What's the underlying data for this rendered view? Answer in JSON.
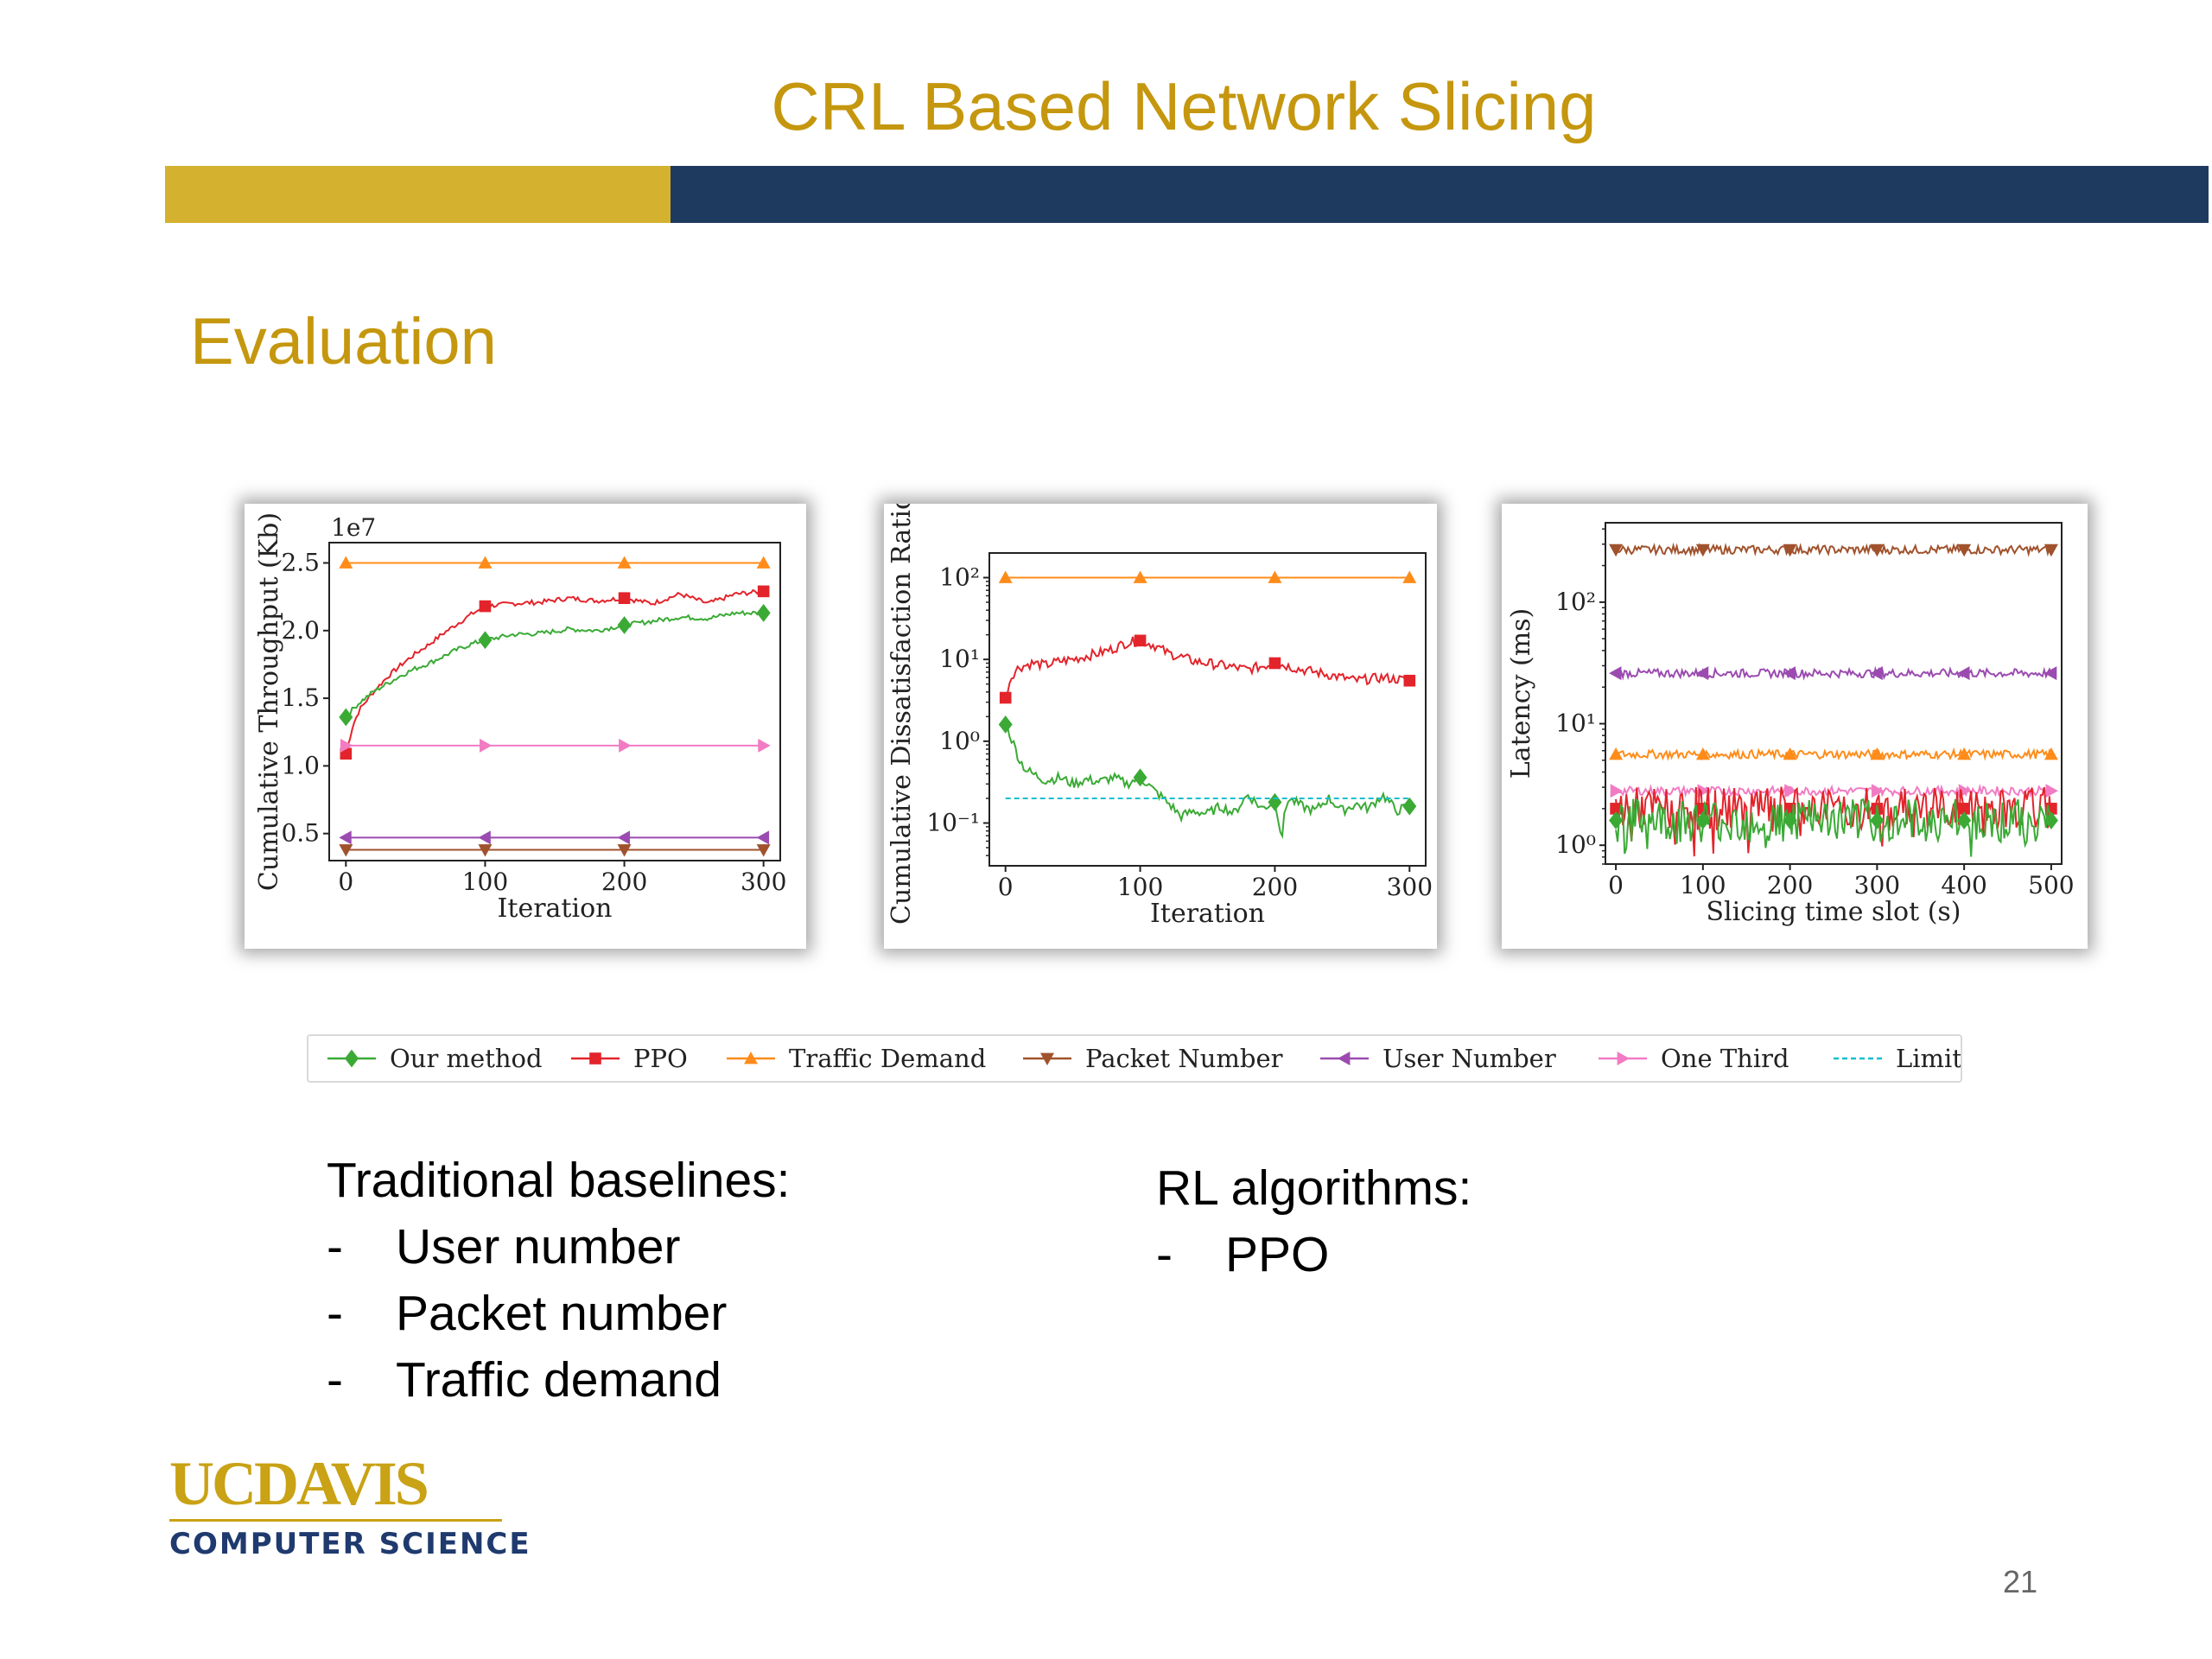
{
  "slide": {
    "title": "CRL Based Network Slicing",
    "section": "Evaluation",
    "page_number": "21"
  },
  "colors": {
    "gold": "#d4b12f",
    "navy": "#1f3a5f",
    "title": "#c5970e",
    "logo_navy": "#1f3a6e",
    "logo_gold": "#c9a215"
  },
  "series_styles": {
    "Our method": {
      "color": "#3aaa35",
      "marker": "diamond"
    },
    "PPO": {
      "color": "#e3242b",
      "marker": "square"
    },
    "Traffic Demand": {
      "color": "#ff8c1a",
      "marker": "triangle-up"
    },
    "Packet Number": {
      "color": "#a0522d",
      "marker": "triangle-down"
    },
    "User Number": {
      "color": "#9b4bb0",
      "marker": "triangle-left"
    },
    "One Third": {
      "color": "#f17cc3",
      "marker": "triangle-right"
    },
    "Limit": {
      "color": "#17becf",
      "marker": "dashed"
    }
  },
  "chart_data": [
    {
      "type": "line",
      "ylabel": "Cumulative Throughput (Kb)",
      "xlabel": "Iteration",
      "y_multiplier": "1e7",
      "xlim": [
        -12,
        312
      ],
      "ylim": [
        0.3,
        2.65
      ],
      "xticks": [
        0,
        100,
        200,
        300
      ],
      "xtick_labels": [
        "0",
        "100",
        "200",
        "300"
      ],
      "yticks": [
        0.5,
        1.0,
        1.5,
        2.0,
        2.5
      ],
      "ytick_labels": [
        "0.5",
        "1.0",
        "1.5",
        "2.0",
        "2.5"
      ],
      "series": [
        {
          "name": "Traffic Demand",
          "x": [
            0,
            300
          ],
          "y": [
            2.5,
            2.5
          ],
          "markers_x": [
            0,
            100,
            200,
            300
          ]
        },
        {
          "name": "PPO",
          "x": [
            0,
            5,
            10,
            20,
            30,
            40,
            50,
            60,
            70,
            80,
            90,
            100,
            120,
            140,
            160,
            180,
            200,
            220,
            240,
            260,
            280,
            300
          ],
          "y": [
            1.09,
            1.3,
            1.42,
            1.55,
            1.66,
            1.75,
            1.83,
            1.9,
            1.98,
            2.05,
            2.12,
            2.18,
            2.2,
            2.21,
            2.24,
            2.22,
            2.24,
            2.2,
            2.27,
            2.2,
            2.27,
            2.29
          ],
          "markers_x": [
            0,
            100,
            200,
            300
          ]
        },
        {
          "name": "Our method",
          "x": [
            0,
            5,
            10,
            20,
            30,
            40,
            50,
            60,
            70,
            80,
            90,
            100,
            120,
            140,
            160,
            180,
            200,
            220,
            240,
            260,
            280,
            300
          ],
          "y": [
            1.36,
            1.42,
            1.47,
            1.55,
            1.61,
            1.67,
            1.72,
            1.76,
            1.81,
            1.86,
            1.9,
            1.93,
            1.97,
            1.98,
            2.01,
            2.0,
            2.04,
            2.07,
            2.1,
            2.09,
            2.13,
            2.13
          ],
          "markers_x": [
            0,
            100,
            200,
            300
          ]
        },
        {
          "name": "One Third",
          "x": [
            0,
            300
          ],
          "y": [
            1.15,
            1.15
          ],
          "markers_x": [
            0,
            100,
            200,
            300
          ]
        },
        {
          "name": "User Number",
          "x": [
            0,
            300
          ],
          "y": [
            0.47,
            0.47
          ],
          "markers_x": [
            0,
            100,
            200,
            300
          ]
        },
        {
          "name": "Packet Number",
          "x": [
            0,
            300
          ],
          "y": [
            0.38,
            0.38
          ],
          "markers_x": [
            0,
            100,
            200,
            300
          ]
        }
      ]
    },
    {
      "type": "line",
      "scale": "log",
      "ylabel": "Cumulative Dissatisfaction Ratio",
      "xlabel": "Iteration",
      "xlim": [
        -12,
        312
      ],
      "ylim": [
        0.03,
        200
      ],
      "xticks": [
        0,
        100,
        200,
        300
      ],
      "xtick_labels": [
        "0",
        "100",
        "200",
        "300"
      ],
      "yticks": [
        0.1,
        1,
        10,
        100
      ],
      "ytick_labels": [
        "10⁻¹",
        "10⁰",
        "10¹",
        "10²"
      ],
      "series": [
        {
          "name": "Traffic Demand",
          "x": [
            0,
            300
          ],
          "y": [
            100,
            100
          ],
          "markers_x": [
            0,
            100,
            200,
            300
          ]
        },
        {
          "name": "PPO",
          "x": [
            0,
            5,
            10,
            20,
            30,
            40,
            50,
            60,
            70,
            80,
            90,
            100,
            110,
            120,
            140,
            160,
            180,
            200,
            220,
            240,
            260,
            280,
            300
          ],
          "y": [
            3.4,
            6.5,
            8.0,
            9.0,
            8.5,
            9.5,
            10.0,
            11.0,
            12.0,
            13.5,
            16.0,
            17.0,
            15.0,
            12.0,
            9.5,
            8.5,
            7.5,
            9.0,
            7.5,
            6.5,
            5.5,
            6.0,
            5.5
          ],
          "markers_x": [
            0,
            100,
            200,
            300
          ]
        },
        {
          "name": "Our method",
          "x": [
            0,
            5,
            10,
            15,
            20,
            30,
            40,
            50,
            60,
            70,
            80,
            90,
            100,
            110,
            120,
            130,
            140,
            150,
            160,
            170,
            180,
            190,
            200,
            205,
            210,
            220,
            230,
            240,
            250,
            260,
            270,
            280,
            290,
            300
          ],
          "y": [
            1.6,
            1.0,
            0.6,
            0.45,
            0.4,
            0.33,
            0.36,
            0.3,
            0.34,
            0.32,
            0.36,
            0.3,
            0.36,
            0.25,
            0.18,
            0.12,
            0.14,
            0.13,
            0.16,
            0.13,
            0.22,
            0.15,
            0.18,
            0.06,
            0.2,
            0.16,
            0.14,
            0.2,
            0.14,
            0.17,
            0.15,
            0.22,
            0.14,
            0.16
          ],
          "markers_x": [
            0,
            100,
            200,
            300
          ]
        },
        {
          "name": "Limit",
          "x": [
            0,
            300
          ],
          "y": [
            0.2,
            0.2
          ]
        }
      ]
    },
    {
      "type": "line",
      "scale": "log",
      "ylabel": "Latency (ms)",
      "xlabel": "Slicing time slot (s)",
      "xlim": [
        -12,
        512
      ],
      "ylim": [
        0.7,
        450
      ],
      "xticks": [
        0,
        100,
        200,
        300,
        400,
        500
      ],
      "xtick_labels": [
        "0",
        "100",
        "200",
        "300",
        "400",
        "500"
      ],
      "yticks": [
        1,
        10,
        100
      ],
      "ytick_labels": [
        "10⁰",
        "10¹",
        "10²"
      ],
      "series": [
        {
          "name": "Packet Number",
          "level": 270,
          "markers_x": [
            0,
            100,
            200,
            300,
            400,
            500
          ]
        },
        {
          "name": "User Number",
          "level": 26,
          "markers_x": [
            0,
            100,
            200,
            300,
            400,
            500
          ]
        },
        {
          "name": "Traffic Demand",
          "level": 5.6,
          "markers_x": [
            0,
            100,
            200,
            300,
            400,
            500
          ]
        },
        {
          "name": "One Third",
          "level": 2.8,
          "markers_x": [
            0,
            100,
            200,
            300,
            400,
            500
          ]
        },
        {
          "name": "PPO",
          "level": 2.0,
          "markers_x": [
            0,
            100,
            200,
            300,
            400,
            500
          ]
        },
        {
          "name": "Our method",
          "level": 1.6,
          "markers_x": [
            0,
            100,
            200,
            300,
            400,
            500
          ]
        }
      ]
    }
  ],
  "legend": [
    "Our method",
    "PPO",
    "Traffic Demand",
    "Packet Number",
    "User Number",
    "One Third",
    "Limit"
  ],
  "text_left": {
    "heading": "Traditional baselines:",
    "items": [
      "User number",
      "Packet number",
      "Traffic demand"
    ]
  },
  "text_right": {
    "heading": "RL algorithms:",
    "items": [
      "PPO"
    ]
  },
  "dash": "-",
  "logo": {
    "uc": "UC",
    "davis": "DAVIS",
    "dept": "COMPUTER SCIENCE"
  }
}
